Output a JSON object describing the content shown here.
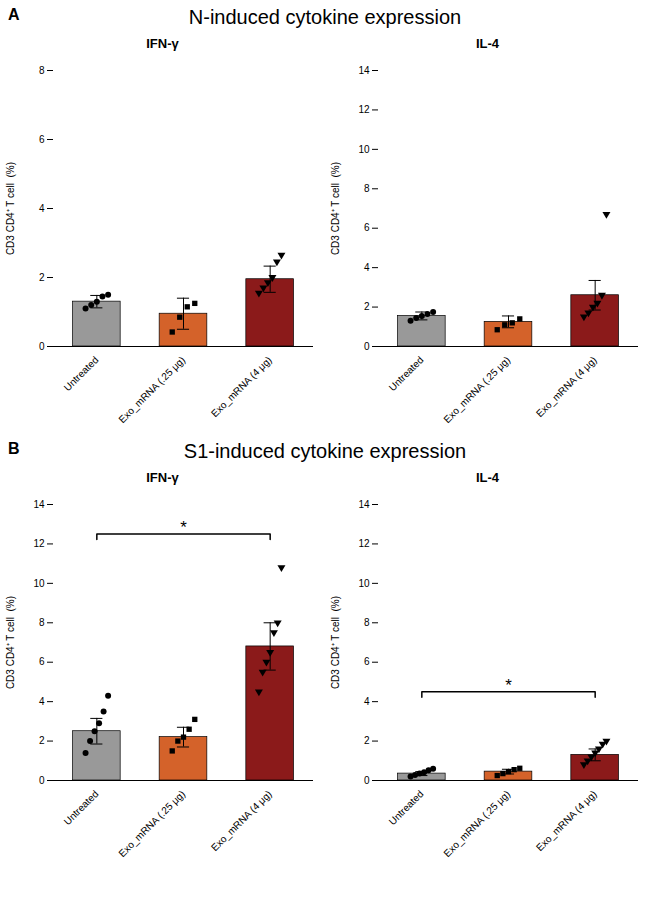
{
  "panels": [
    {
      "label": "A",
      "title": "N-induced cytokine expression"
    },
    {
      "label": "B",
      "title": "S1-induced cytokine expression"
    }
  ],
  "chart_data": [
    {
      "type": "bar",
      "panel": "A",
      "title": "IFN-γ",
      "categories": [
        "Untreated",
        "Exo_mRNA (.25 μg)",
        "Exo_mRNA (4 μg)"
      ],
      "values": [
        1.3,
        0.95,
        1.95
      ],
      "errors": [
        0.18,
        0.45,
        0.38
      ],
      "colors": [
        "#999999",
        "#D4622A",
        "#8B1A1A"
      ],
      "points": [
        [
          1.1,
          1.2,
          1.3,
          1.45,
          1.5
        ],
        [
          0.42,
          0.85,
          1.15,
          1.25
        ],
        [
          1.55,
          1.7,
          1.85,
          2.0,
          2.45,
          2.65
        ]
      ],
      "markers": [
        "circle",
        "square",
        "triangle-down"
      ],
      "ylabel": "CD3 CD4⁺ T cell  (%)",
      "ylim": [
        0,
        8
      ],
      "yticks": [
        0,
        2,
        4,
        6,
        8
      ],
      "grid": false
    },
    {
      "type": "bar",
      "panel": "A",
      "title": "IL-4",
      "categories": [
        "Untreated",
        "Exo_mRNA (.25 μg)",
        "Exo_mRNA (4 μg)"
      ],
      "values": [
        1.55,
        1.25,
        2.6
      ],
      "errors": [
        0.2,
        0.3,
        0.75
      ],
      "colors": [
        "#999999",
        "#D4622A",
        "#8B1A1A"
      ],
      "points": [
        [
          1.3,
          1.45,
          1.55,
          1.65,
          1.75
        ],
        [
          0.85,
          1.1,
          1.2,
          1.4
        ],
        [
          1.5,
          1.7,
          2.0,
          2.2,
          2.6,
          6.7
        ]
      ],
      "markers": [
        "circle",
        "square",
        "triangle-down"
      ],
      "ylabel": "CD3 CD4⁺ T cell  (%)",
      "ylim": [
        0,
        14
      ],
      "yticks": [
        0,
        2,
        4,
        6,
        8,
        10,
        12,
        14
      ],
      "grid": false
    },
    {
      "type": "bar",
      "panel": "B",
      "title": "IFN-γ",
      "categories": [
        "Untreated",
        "Exo_mRNA (.25 μg)",
        "Exo_mRNA (4 μg)"
      ],
      "values": [
        2.5,
        2.2,
        6.8
      ],
      "errors": [
        0.65,
        0.5,
        1.2
      ],
      "colors": [
        "#999999",
        "#D4622A",
        "#8B1A1A"
      ],
      "points": [
        [
          1.4,
          2.0,
          2.5,
          2.9,
          3.5,
          4.3
        ],
        [
          1.5,
          2.0,
          2.2,
          2.6,
          3.1
        ],
        [
          4.5,
          5.5,
          6.0,
          6.5,
          7.5,
          8.0,
          10.8
        ]
      ],
      "markers": [
        "circle",
        "square",
        "triangle-down"
      ],
      "ylabel": "CD3 CD4⁺ T cell  (%)",
      "ylim": [
        0,
        14
      ],
      "yticks": [
        0,
        2,
        4,
        6,
        8,
        10,
        12,
        14
      ],
      "grid": false,
      "annotations": [
        {
          "text": "*",
          "x1": "Untreated",
          "x2": "Exo_mRNA (4 μg)",
          "y": 12.5
        }
      ]
    },
    {
      "type": "bar",
      "panel": "B",
      "title": "IL-4",
      "categories": [
        "Untreated",
        "Exo_mRNA (.25 μg)",
        "Exo_mRNA (4 μg)"
      ],
      "values": [
        0.35,
        0.45,
        1.3
      ],
      "errors": [
        0.1,
        0.12,
        0.3
      ],
      "colors": [
        "#999999",
        "#D4622A",
        "#8B1A1A"
      ],
      "points": [
        [
          0.2,
          0.28,
          0.35,
          0.42,
          0.52,
          0.6
        ],
        [
          0.25,
          0.35,
          0.45,
          0.55,
          0.62
        ],
        [
          0.8,
          1.0,
          1.2,
          1.4,
          1.6,
          1.85,
          2.0
        ]
      ],
      "markers": [
        "circle",
        "square",
        "triangle-down"
      ],
      "ylabel": "CD3 CD4⁺ T cell  (%)",
      "ylim": [
        0,
        14
      ],
      "yticks": [
        0,
        2,
        4,
        6,
        8,
        10,
        12,
        14
      ],
      "grid": false,
      "annotations": [
        {
          "text": "*",
          "x1": "Untreated",
          "x2": "Exo_mRNA (4 μg)",
          "y": 4.5
        }
      ]
    }
  ]
}
